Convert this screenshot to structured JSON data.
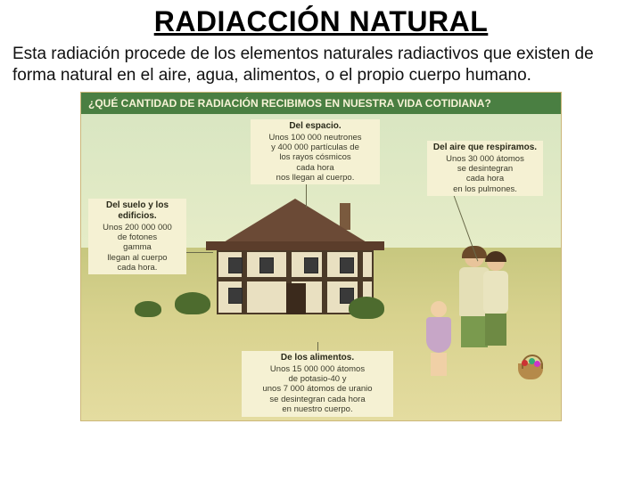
{
  "title": "RADIACCIÓN NATURAL",
  "intro": "Esta radiación procede de los elementos naturales radiactivos que existen de forma natural en el aire, agua, alimentos, o el propio cuerpo humano.",
  "infographic": {
    "banner": "¿QUÉ CANTIDAD DE RADIACIÓN RECIBIMOS EN NUESTRA VIDA COTIDIANA?",
    "background_color": "#f2eecf",
    "banner_bg": "#4a7f42",
    "banner_text_color": "#f7f3d7",
    "callouts": {
      "space": {
        "heading": "Del espacio.",
        "l1": "Unos 100 000 neutrones",
        "l2": "y 400 000 partículas de",
        "l3": "los rayos cósmicos",
        "l4": "cada hora",
        "l5": "nos llegan al cuerpo."
      },
      "air": {
        "heading": "Del aire que respiramos.",
        "l1": "Unos 30 000 átomos",
        "l2": "se desintegran",
        "l3": "cada hora",
        "l4": "en los pulmones."
      },
      "soil": {
        "heading": "Del suelo y los edificios.",
        "l1": "Unos 200 000 000",
        "l2": "de fotones",
        "l3": "gamma",
        "l4": "llegan al cuerpo",
        "l5": "cada hora."
      },
      "food": {
        "heading": "De los alimentos.",
        "l1": "Unos 15 000 000 átomos",
        "l2": "de potasio-40 y",
        "l3": "unos 7 000 átomos de uranio",
        "l4": "se desintegran cada hora",
        "l5": "en nuestro cuerpo."
      }
    }
  },
  "colors": {
    "sky": "#d9e6c2",
    "ground": "#d8d28e",
    "roof": "#6b4a36",
    "walls": "#e9e0c1",
    "beam": "#4b3a28",
    "bush": "#4d6b2e"
  }
}
